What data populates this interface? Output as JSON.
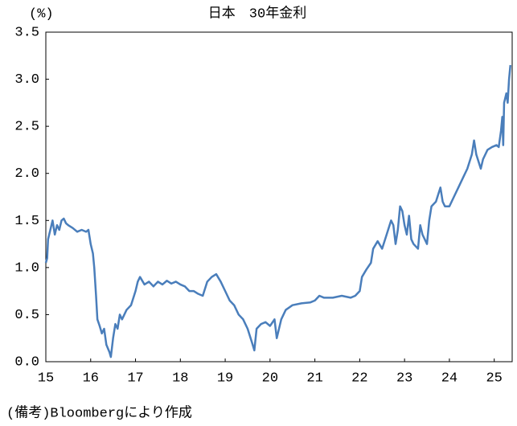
{
  "chart_data": {
    "type": "line",
    "title": "日本　30年金利",
    "y_unit_label": "(%)",
    "source_note": "(備考)Bloombergにより作成",
    "xlim": [
      15,
      25.4
    ],
    "xticks": [
      15,
      16,
      17,
      18,
      19,
      20,
      21,
      22,
      23,
      24,
      25
    ],
    "ylim": [
      0,
      3.5
    ],
    "yticks": [
      {
        "value": 0,
        "label": "0.0"
      },
      0.5,
      {
        "value": 1,
        "label": "1.0"
      },
      1.5,
      {
        "value": 2,
        "label": "2.0"
      },
      2.5,
      {
        "value": 3,
        "label": "3.0"
      },
      3.5
    ],
    "grid": false,
    "series": [
      {
        "name": "30年金利",
        "color": "#4a7ebb",
        "x": [
          15.0,
          15.03,
          15.05,
          15.1,
          15.15,
          15.2,
          15.25,
          15.3,
          15.35,
          15.4,
          15.45,
          15.5,
          15.6,
          15.7,
          15.8,
          15.9,
          15.95,
          16.0,
          16.05,
          16.08,
          16.12,
          16.15,
          16.2,
          16.25,
          16.3,
          16.35,
          16.42,
          16.45,
          16.5,
          16.55,
          16.6,
          16.65,
          16.7,
          16.8,
          16.9,
          17.0,
          17.05,
          17.1,
          17.2,
          17.3,
          17.4,
          17.5,
          17.6,
          17.7,
          17.8,
          17.9,
          18.0,
          18.1,
          18.2,
          18.3,
          18.4,
          18.5,
          18.6,
          18.7,
          18.8,
          18.9,
          19.0,
          19.1,
          19.2,
          19.3,
          19.4,
          19.5,
          19.6,
          19.65,
          19.7,
          19.8,
          19.9,
          20.0,
          20.1,
          20.15,
          20.2,
          20.25,
          20.35,
          20.5,
          20.7,
          20.9,
          21.0,
          21.1,
          21.2,
          21.4,
          21.6,
          21.8,
          21.9,
          22.0,
          22.05,
          22.15,
          22.25,
          22.3,
          22.4,
          22.5,
          22.6,
          22.7,
          22.75,
          22.8,
          22.85,
          22.9,
          22.95,
          23.0,
          23.05,
          23.1,
          23.15,
          23.2,
          23.3,
          23.35,
          23.4,
          23.5,
          23.55,
          23.6,
          23.7,
          23.8,
          23.85,
          23.9,
          24.0,
          24.1,
          24.2,
          24.3,
          24.4,
          24.5,
          24.55,
          24.6,
          24.7,
          24.75,
          24.85,
          24.95,
          25.05,
          25.1,
          25.15,
          25.18,
          25.2,
          25.22,
          25.27,
          25.3,
          25.33,
          25.36
        ],
        "values": [
          1.05,
          1.1,
          1.3,
          1.4,
          1.5,
          1.35,
          1.45,
          1.4,
          1.5,
          1.52,
          1.47,
          1.45,
          1.42,
          1.38,
          1.4,
          1.38,
          1.4,
          1.25,
          1.15,
          1.0,
          0.7,
          0.45,
          0.38,
          0.3,
          0.35,
          0.18,
          0.1,
          0.05,
          0.25,
          0.4,
          0.35,
          0.5,
          0.45,
          0.55,
          0.6,
          0.75,
          0.85,
          0.9,
          0.82,
          0.85,
          0.8,
          0.85,
          0.82,
          0.86,
          0.83,
          0.85,
          0.82,
          0.8,
          0.75,
          0.75,
          0.72,
          0.7,
          0.85,
          0.9,
          0.93,
          0.85,
          0.75,
          0.65,
          0.6,
          0.5,
          0.45,
          0.35,
          0.2,
          0.12,
          0.35,
          0.4,
          0.42,
          0.38,
          0.45,
          0.25,
          0.35,
          0.45,
          0.55,
          0.6,
          0.62,
          0.63,
          0.65,
          0.7,
          0.68,
          0.68,
          0.7,
          0.68,
          0.7,
          0.75,
          0.9,
          0.98,
          1.05,
          1.2,
          1.28,
          1.2,
          1.35,
          1.5,
          1.45,
          1.25,
          1.4,
          1.65,
          1.6,
          1.45,
          1.35,
          1.55,
          1.3,
          1.25,
          1.2,
          1.45,
          1.35,
          1.25,
          1.5,
          1.65,
          1.7,
          1.85,
          1.7,
          1.65,
          1.65,
          1.75,
          1.85,
          1.95,
          2.05,
          2.2,
          2.35,
          2.2,
          2.05,
          2.15,
          2.25,
          2.28,
          2.3,
          2.28,
          2.45,
          2.6,
          2.3,
          2.75,
          2.85,
          2.75,
          3.0,
          3.15
        ]
      }
    ]
  }
}
